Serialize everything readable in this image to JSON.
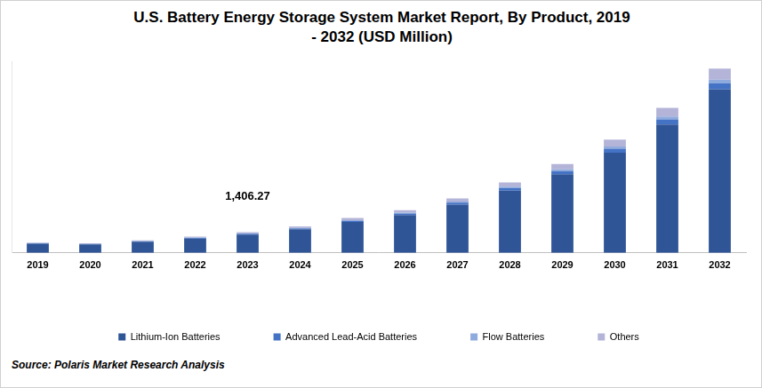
{
  "chart_data": {
    "type": "bar",
    "title": "U.S. Battery Energy Storage System Market Report, By Product, 2019 - 2032 (USD Million)",
    "source": "Source: Polaris Market Research Analysis",
    "categories": [
      "2019",
      "2020",
      "2021",
      "2022",
      "2023",
      "2024",
      "2025",
      "2026",
      "2027",
      "2028",
      "2029",
      "2030",
      "2031",
      "2032"
    ],
    "series": [
      {
        "name": "Lithium-Ion Batteries",
        "color": "#2f5597",
        "values": [
          620,
          575,
          752,
          973,
          1244.5,
          1593,
          2089,
          2567,
          3275,
          4222,
          5328,
          6797,
          8708,
          11100
        ]
      },
      {
        "name": "Advanced Lead-Acid Batteries",
        "color": "#4472c4",
        "values": [
          25,
          23,
          30,
          39,
          49.2,
          63,
          83,
          101,
          130,
          167,
          211,
          269,
          344,
          400
        ]
      },
      {
        "name": "Flow Batteries",
        "color": "#8faadc",
        "values": [
          15,
          14,
          18,
          23,
          28.1,
          36,
          47,
          58,
          74,
          95,
          120,
          154,
          197,
          250
        ]
      },
      {
        "name": "Others",
        "color": "#b4b4d9",
        "values": [
          40,
          38,
          50,
          65,
          84.47,
          108,
          141,
          174,
          221,
          286,
          361,
          460,
          591,
          750
        ]
      }
    ],
    "stacked": true,
    "ylim": [
      0,
      13000
    ],
    "tick_labels": "x",
    "grid": false,
    "legend": "bottom",
    "annotations": [
      {
        "text": "1,406.27",
        "category": "2023",
        "value": 1406.27
      }
    ]
  }
}
